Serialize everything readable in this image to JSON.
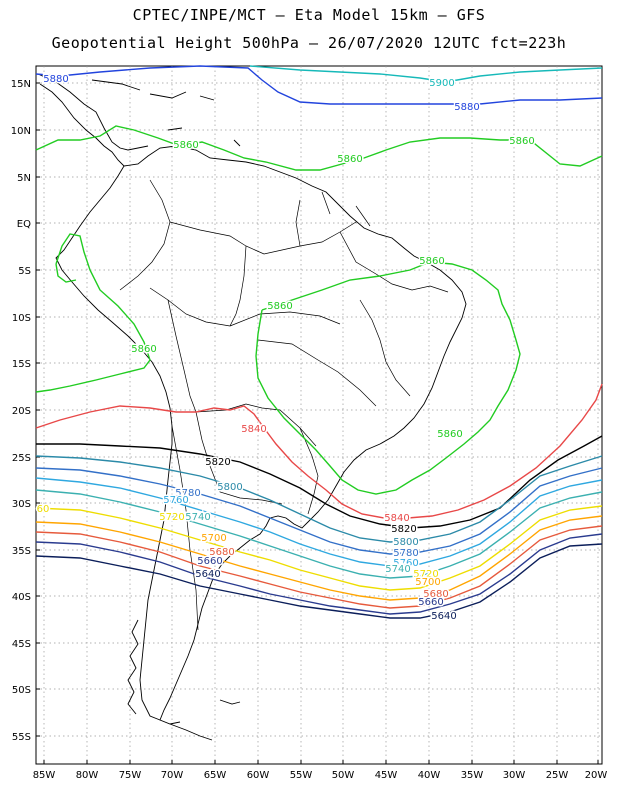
{
  "header": {
    "line1": "CPTEC/INPE/MCT –  Eta Model 15km – GFS",
    "line2": "Geopotential Height 500hPa – 26/07/2020 12UTC fct=223h"
  },
  "map": {
    "lat_labels": [
      "15N",
      "10N",
      "5N",
      "EQ",
      "5S",
      "10S",
      "15S",
      "20S",
      "25S",
      "30S",
      "35S",
      "40S",
      "45S",
      "50S",
      "55S"
    ],
    "lon_labels": [
      "85W",
      "80W",
      "75W",
      "70W",
      "65W",
      "60W",
      "55W",
      "50W",
      "45W",
      "40W",
      "35W",
      "30W",
      "25W",
      "20W"
    ],
    "colors": {
      "c5900": "#16b9b9",
      "c5880": "#2244dd",
      "c5860": "#22cc22",
      "c5840": "#e84848",
      "c5820": "#000000",
      "c5800": "#2b8aa8",
      "c5780": "#3370c8",
      "c5760": "#2fa8e0",
      "c5740": "#3bb0b0",
      "c5720": "#eedd00",
      "c5700": "#ffa500",
      "c5680": "#e65a3c",
      "c5660": "#2a3b8f",
      "c5640": "#0b1e5a"
    },
    "contour_labels": {
      "l5900": "5900",
      "l5880a": "5880",
      "l5880b": "5880",
      "l5860a": "5860",
      "l5860b": "5860",
      "l5860c": "5860",
      "l5860d": "5860",
      "l5860e": "5860",
      "l5860f": "5860",
      "l5860g": "5860",
      "l5840a": "5840",
      "l5840b": "5840",
      "l5820a": "5820",
      "l5820b": "5820",
      "l5800a": "5800",
      "l5800b": "5800",
      "l5780a": "5780",
      "l5780b": "5780",
      "l5760a": "5760",
      "l5760b": "5760",
      "l5740a": "5740",
      "l5740b": "5740",
      "l5720a": "5720",
      "l5720b": "5720",
      "l5700a": "5700",
      "l5700b": "5700",
      "l5680a": "5680",
      "l5680b": "5680",
      "l5660a": "5660",
      "l5660b": "5660",
      "l5640a": "5640",
      "l5640b": "5640",
      "ledge": "60"
    }
  }
}
